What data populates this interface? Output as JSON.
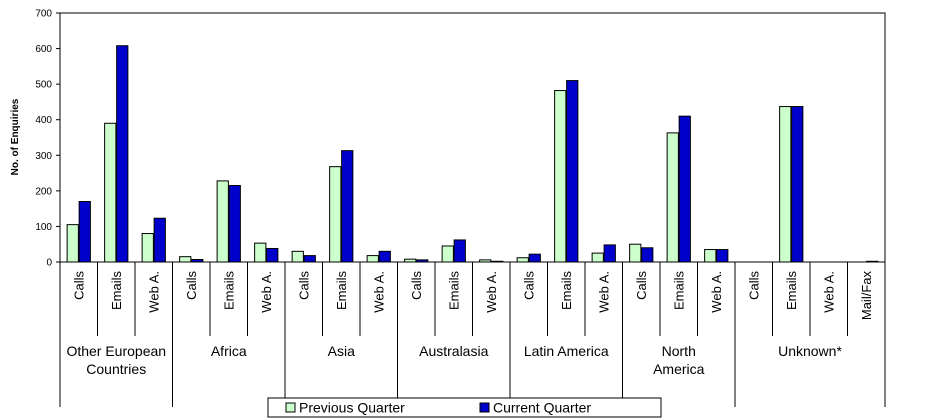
{
  "chart_data": {
    "type": "bar",
    "ylabel": "No. of Enquiries",
    "ylim": [
      0,
      700
    ],
    "yticks": [
      0,
      100,
      200,
      300,
      400,
      500,
      600,
      700
    ],
    "grid": false,
    "legend_position": "bottom",
    "groups": [
      {
        "name": "Other European Countries",
        "label_lines": [
          "Other European",
          "Countries"
        ],
        "categories": [
          "Calls",
          "Emails",
          "Web A."
        ]
      },
      {
        "name": "Africa",
        "label_lines": [
          "Africa"
        ],
        "categories": [
          "Calls",
          "Emails",
          "Web A."
        ]
      },
      {
        "name": "Asia",
        "label_lines": [
          "Asia"
        ],
        "categories": [
          "Calls",
          "Emails",
          "Web A."
        ]
      },
      {
        "name": "Australasia",
        "label_lines": [
          "Australasia"
        ],
        "categories": [
          "Calls",
          "Emails",
          "Web A."
        ]
      },
      {
        "name": "Latin America",
        "label_lines": [
          "Latin America"
        ],
        "categories": [
          "Calls",
          "Emails",
          "Web A."
        ]
      },
      {
        "name": "North America",
        "label_lines": [
          "North",
          "America"
        ],
        "categories": [
          "Calls",
          "Emails",
          "Web A."
        ]
      },
      {
        "name": "Unknown*",
        "label_lines": [
          "Unknown*"
        ],
        "categories": [
          "Calls",
          "Emails",
          "Web A.",
          "Mail/Fax"
        ]
      }
    ],
    "series": [
      {
        "name": "Previous Quarter",
        "color": "#ccffcc",
        "values": [
          105,
          390,
          80,
          15,
          228,
          53,
          30,
          268,
          18,
          8,
          45,
          6,
          12,
          482,
          25,
          50,
          363,
          35,
          0,
          437,
          0,
          0
        ]
      },
      {
        "name": "Current Quarter",
        "color": "#0000cc",
        "values": [
          170,
          608,
          123,
          7,
          215,
          38,
          18,
          313,
          30,
          6,
          62,
          2,
          22,
          510,
          48,
          40,
          410,
          35,
          0,
          437,
          0,
          2
        ]
      }
    ]
  }
}
